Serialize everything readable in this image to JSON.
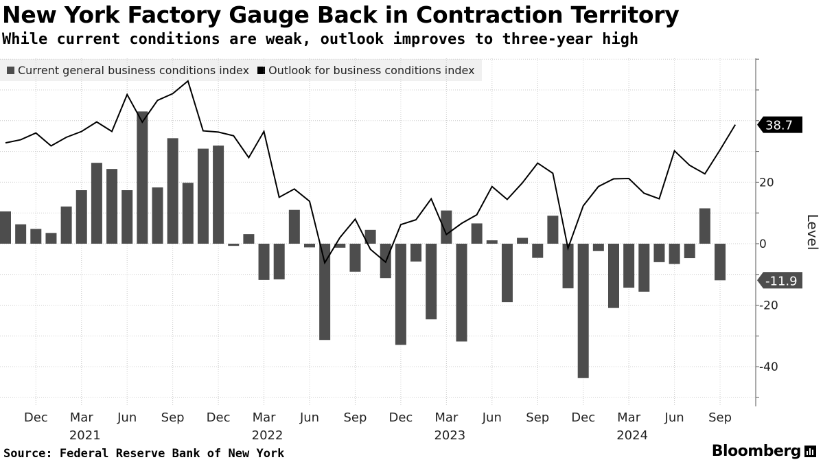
{
  "header": {
    "title": "New York Factory Gauge Back in Contraction Territory",
    "subtitle": "While current conditions are weak, outlook improves to three-year high"
  },
  "footer": {
    "source": "Source: Federal Reserve Bank of New York",
    "brand": "Bloomberg"
  },
  "colors": {
    "bar": "#4d4d4d",
    "line": "#000000",
    "grid": "#cccccc",
    "legend_bg": "#f0f0f0"
  },
  "chart_data": {
    "type": "bar+line",
    "ylabel": "Level",
    "ylim": [
      -51,
      60
    ],
    "yticks": [
      -40,
      -20,
      0,
      20
    ],
    "ytick_labels": [
      "-40",
      "-20",
      "0",
      "20"
    ],
    "end_labels": {
      "bar": "-11.9",
      "line": "38.7"
    },
    "x_tick_labels": [
      {
        "index": 2,
        "label": "Dec",
        "year": ""
      },
      {
        "index": 5,
        "label": "Mar",
        "year": "2021"
      },
      {
        "index": 8,
        "label": "Jun",
        "year": ""
      },
      {
        "index": 11,
        "label": "Sep",
        "year": ""
      },
      {
        "index": 14,
        "label": "Dec",
        "year": ""
      },
      {
        "index": 17,
        "label": "Mar",
        "year": "2022"
      },
      {
        "index": 20,
        "label": "Jun",
        "year": ""
      },
      {
        "index": 23,
        "label": "Sep",
        "year": ""
      },
      {
        "index": 26,
        "label": "Dec",
        "year": ""
      },
      {
        "index": 29,
        "label": "Mar",
        "year": "2023"
      },
      {
        "index": 32,
        "label": "Jun",
        "year": ""
      },
      {
        "index": 35,
        "label": "Sep",
        "year": ""
      },
      {
        "index": 38,
        "label": "Dec",
        "year": ""
      },
      {
        "index": 41,
        "label": "Mar",
        "year": "2024"
      },
      {
        "index": 44,
        "label": "Jun",
        "year": ""
      },
      {
        "index": 47,
        "label": "Sep",
        "year": ""
      }
    ],
    "months": [
      "Oct 2020",
      "Nov 2020",
      "Dec 2020",
      "Jan 2021",
      "Feb 2021",
      "Mar 2021",
      "Apr 2021",
      "May 2021",
      "Jun 2021",
      "Jul 2021",
      "Aug 2021",
      "Sep 2021",
      "Oct 2021",
      "Nov 2021",
      "Dec 2021",
      "Jan 2022",
      "Feb 2022",
      "Mar 2022",
      "Apr 2022",
      "May 2022",
      "Jun 2022",
      "Jul 2022",
      "Aug 2022",
      "Sep 2022",
      "Oct 2022",
      "Nov 2022",
      "Dec 2022",
      "Jan 2023",
      "Feb 2023",
      "Mar 2023",
      "Apr 2023",
      "May 2023",
      "Jun 2023",
      "Jul 2023",
      "Aug 2023",
      "Sep 2023",
      "Oct 2023",
      "Nov 2023",
      "Dec 2023",
      "Jan 2024",
      "Feb 2024",
      "Mar 2024",
      "Apr 2024",
      "May 2024",
      "Jun 2024",
      "Jul 2024",
      "Aug 2024",
      "Sep 2024",
      "Oct 2024"
    ],
    "series": [
      {
        "name": "Current general business conditions index",
        "kind": "bar",
        "values": [
          10.5,
          6.3,
          4.8,
          3.5,
          12.1,
          17.4,
          26.3,
          24.3,
          17.4,
          43.0,
          18.3,
          34.3,
          19.8,
          30.9,
          31.9,
          -0.7,
          3.1,
          -11.8,
          -11.6,
          11.0,
          -1.2,
          -31.3,
          -1.3,
          -9.1,
          4.5,
          -11.2,
          -32.9,
          -5.8,
          -24.6,
          10.8,
          -31.8,
          6.6,
          1.1,
          -19.0,
          1.9,
          -4.6,
          9.1,
          -14.5,
          -43.7,
          -2.4,
          -20.9,
          -14.3,
          -15.6,
          -6.0,
          -6.6,
          -4.7,
          11.5,
          -11.9,
          -11.9
        ],
        "plot_mask": [
          1,
          1,
          1,
          1,
          1,
          1,
          1,
          1,
          1,
          1,
          1,
          1,
          1,
          1,
          1,
          1,
          1,
          1,
          1,
          1,
          1,
          1,
          1,
          1,
          1,
          1,
          1,
          1,
          1,
          1,
          1,
          1,
          1,
          1,
          1,
          1,
          1,
          1,
          1,
          1,
          1,
          1,
          1,
          1,
          1,
          1,
          1,
          1,
          0
        ]
      },
      {
        "name": "Outlook for business conditions index",
        "kind": "line",
        "values": [
          32.8,
          33.8,
          36.0,
          31.8,
          34.6,
          36.5,
          39.6,
          36.5,
          48.5,
          39.5,
          46.6,
          48.8,
          52.9,
          36.7,
          36.3,
          35.1,
          28.0,
          36.5,
          15.1,
          17.8,
          13.8,
          -6.2,
          2.0,
          8.0,
          -1.8,
          -6.0,
          6.2,
          7.8,
          14.6,
          3.0,
          6.6,
          9.4,
          18.6,
          14.4,
          19.8,
          26.2,
          22.9,
          -1.5,
          12.3,
          18.6,
          21.1,
          21.2,
          16.4,
          14.6,
          30.2,
          25.5,
          22.7,
          30.5,
          38.7
        ],
        "plot_mask": [
          1,
          1,
          1,
          1,
          1,
          1,
          1,
          1,
          1,
          1,
          1,
          1,
          1,
          1,
          1,
          1,
          1,
          1,
          1,
          1,
          1,
          1,
          1,
          1,
          1,
          1,
          1,
          1,
          1,
          1,
          1,
          1,
          1,
          1,
          1,
          1,
          1,
          1,
          1,
          1,
          1,
          1,
          1,
          1,
          1,
          1,
          1,
          1,
          1
        ]
      }
    ]
  }
}
